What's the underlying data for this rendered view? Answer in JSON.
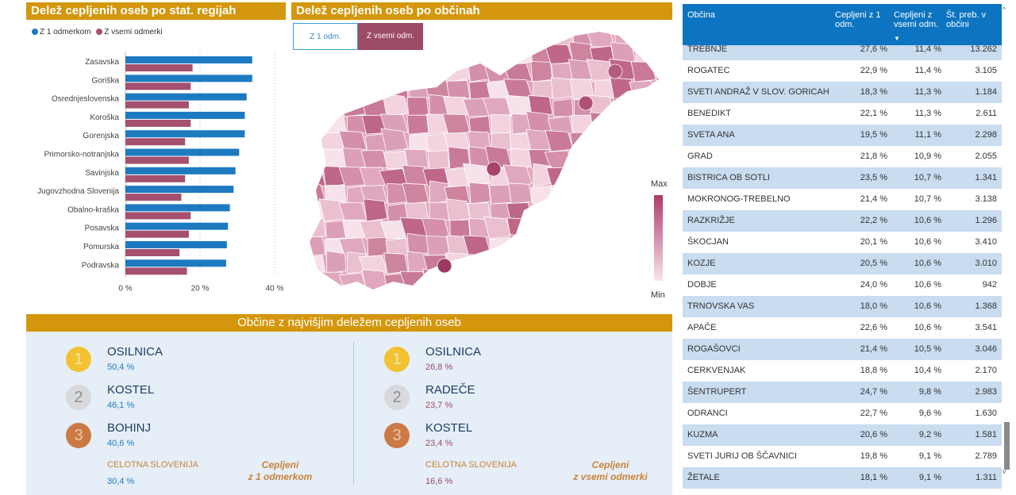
{
  "panels": {
    "regions_title": "Delež cepljenih oseb po stat. regijah",
    "municipalities_title": "Delež cepljenih oseb po občinah",
    "top_title": "Občine z najvišjim deležem cepljenih oseb"
  },
  "legend": {
    "dose1": "Z 1 odmerkom",
    "full": "Z vsemi odmerki",
    "dose1_color": "#1d7ac0",
    "full_color": "#a5506f"
  },
  "map": {
    "btn_dose1": "Z 1 odm.",
    "btn_full": "Z vsemi odm.",
    "legend_max": "Max",
    "legend_min": "Min"
  },
  "chart_data": {
    "type": "bar",
    "orientation": "horizontal",
    "categories": [
      "Zasavska",
      "Goriška",
      "Osrednjeslovenska",
      "Koroška",
      "Gorenjska",
      "Primorsko-notranjska",
      "Savinjska",
      "Jugovzhodna Slovenija",
      "Obalno-kraška",
      "Posavska",
      "Pomurska",
      "Podravska"
    ],
    "series": [
      {
        "name": "Z 1 odmerkom",
        "color": "#1d7ac0",
        "values": [
          34,
          34,
          32.5,
          32,
          32,
          30.5,
          29.5,
          29,
          28,
          27.5,
          27.2,
          27
        ]
      },
      {
        "name": "Z vsemi odmerki",
        "color": "#a5506f",
        "values": [
          18,
          17.5,
          17,
          17.5,
          16,
          17,
          16,
          15,
          17.5,
          17,
          14.5,
          16.5
        ]
      }
    ],
    "xlim": [
      0,
      40
    ],
    "xticks": [
      "0 %",
      "20 %",
      "40 %"
    ],
    "xtick_values": [
      0,
      20,
      40
    ]
  },
  "top": {
    "dose1": {
      "entries": [
        {
          "rank": "1",
          "name": "OSILNICA",
          "value": "50,4 %"
        },
        {
          "rank": "2",
          "name": "KOSTEL",
          "value": "46,1 %"
        },
        {
          "rank": "3",
          "name": "BOHINJ",
          "value": "40,6 %"
        }
      ],
      "total_label": "CELOTNA SLOVENIJA",
      "total_value": "30,4 %",
      "caption_1": "Cepljeni",
      "caption_2": "z 1 odmerkom"
    },
    "full": {
      "entries": [
        {
          "rank": "1",
          "name": "OSILNICA",
          "value": "26,8 %"
        },
        {
          "rank": "2",
          "name": "RADEČE",
          "value": "23,7 %"
        },
        {
          "rank": "3",
          "name": "KOSTEL",
          "value": "23,4 %"
        }
      ],
      "total_label": "CELOTNA SLOVENIJA",
      "total_value": "16,6 %",
      "caption_1": "Cepljeni",
      "caption_2": "z vsemi odmerki"
    }
  },
  "table": {
    "headers": [
      "Občina",
      "Cepljeni z 1 odm.",
      "Cepljeni z vsemi odm.",
      "Št. preb. v občini"
    ],
    "rows": [
      [
        "TREBNJE",
        "27,6 %",
        "11,4 %",
        "13.262"
      ],
      [
        "ROGATEC",
        "22,9 %",
        "11,4 %",
        "3.105"
      ],
      [
        "SVETI ANDRAŽ V SLOV. GORICAH",
        "18,3 %",
        "11,3 %",
        "1.184"
      ],
      [
        "BENEDIKT",
        "22,1 %",
        "11,3 %",
        "2.611"
      ],
      [
        "SVETA ANA",
        "19,5 %",
        "11,1 %",
        "2.298"
      ],
      [
        "GRAD",
        "21,8 %",
        "10,9 %",
        "2.055"
      ],
      [
        "BISTRICA OB SOTLI",
        "23,5 %",
        "10,7 %",
        "1.341"
      ],
      [
        "MOKRONOG-TREBELNO",
        "21,4 %",
        "10,7 %",
        "3.138"
      ],
      [
        "RAZKRIŽJE",
        "22,2 %",
        "10,6 %",
        "1.296"
      ],
      [
        "ŠKOCJAN",
        "20,1 %",
        "10,6 %",
        "3.410"
      ],
      [
        "KOZJE",
        "20,5 %",
        "10,6 %",
        "3.010"
      ],
      [
        "DOBJE",
        "24,0 %",
        "10,6 %",
        "942"
      ],
      [
        "TRNOVSKA VAS",
        "18,0 %",
        "10,6 %",
        "1.368"
      ],
      [
        "APAČE",
        "22,6 %",
        "10,6 %",
        "3.541"
      ],
      [
        "ROGAŠOVCI",
        "21,4 %",
        "10,5 %",
        "3.046"
      ],
      [
        "CERKVENJAK",
        "18,8 %",
        "10,4 %",
        "2.170"
      ],
      [
        "ŠENTRUPERT",
        "24,7 %",
        "9,8 %",
        "2.983"
      ],
      [
        "ODRANCI",
        "22,7 %",
        "9,6 %",
        "1.630"
      ],
      [
        "KUZMA",
        "20,6 %",
        "9,2 %",
        "1.581"
      ],
      [
        "SVETI JURIJ OB ŠČAVNICI",
        "19,8 %",
        "9,1 %",
        "2.789"
      ],
      [
        "ŽETALE",
        "18,1 %",
        "9,1 %",
        "1.311"
      ]
    ]
  }
}
